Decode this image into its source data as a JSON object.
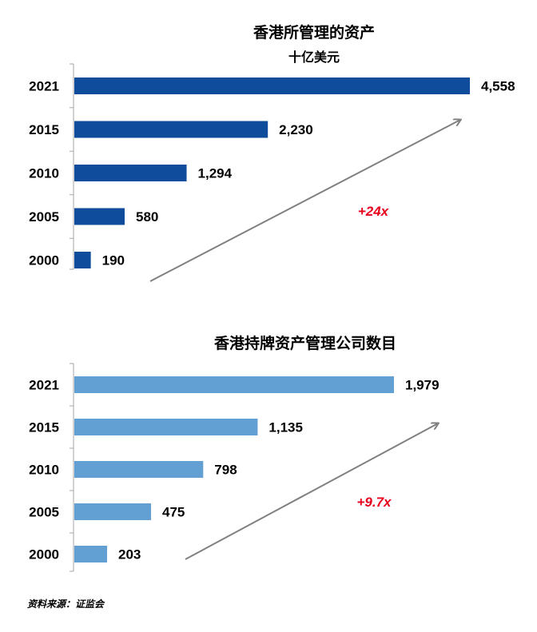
{
  "chart_data": [
    {
      "type": "bar",
      "orientation": "horizontal",
      "title": "香港所管理的资产",
      "subtitle": "十亿美元",
      "categories": [
        "2021",
        "2015",
        "2010",
        "2005",
        "2000"
      ],
      "values": [
        4558,
        2230,
        1294,
        580,
        190
      ],
      "value_labels": [
        "4,558",
        "2,230",
        "1,294",
        "580",
        "190"
      ],
      "annotation": "+24x",
      "bar_color": "#0f4c9c",
      "grid": false
    },
    {
      "type": "bar",
      "orientation": "horizontal",
      "title": "香港持牌资产管理公司数目",
      "subtitle": "",
      "categories": [
        "2021",
        "2015",
        "2010",
        "2005",
        "2000"
      ],
      "values": [
        1979,
        1135,
        798,
        475,
        203
      ],
      "value_labels": [
        "1,979",
        "1,135",
        "798",
        "475",
        "203"
      ],
      "annotation": "+9.7x",
      "bar_color": "#62a0d4",
      "grid": false
    }
  ],
  "source_note": "资料来源：证监会",
  "colors": {
    "annotation": "#e8001c",
    "arrow": "#808080",
    "axis": "#a6a6a6"
  }
}
